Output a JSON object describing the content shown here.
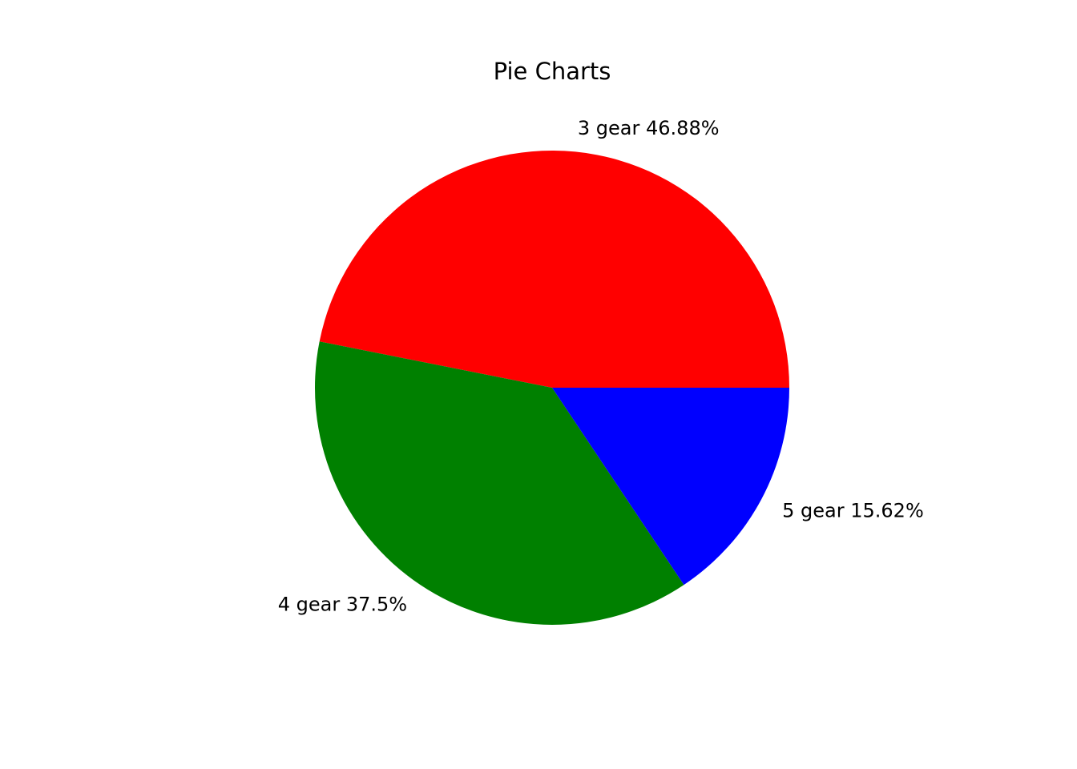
{
  "chart_data": {
    "type": "pie",
    "title": "Pie Charts",
    "start_angle_degrees": 0,
    "direction": "counterclockwise",
    "slices": [
      {
        "label": "3 gear 46.88%",
        "value": 15,
        "percent": 46.88,
        "color": "#ff0000"
      },
      {
        "label": "4 gear 37.5%",
        "value": 12,
        "percent": 37.5,
        "color": "#008000"
      },
      {
        "label": "5 gear 15.62%",
        "value": 5,
        "percent": 15.62,
        "color": "#0000ff"
      }
    ]
  }
}
